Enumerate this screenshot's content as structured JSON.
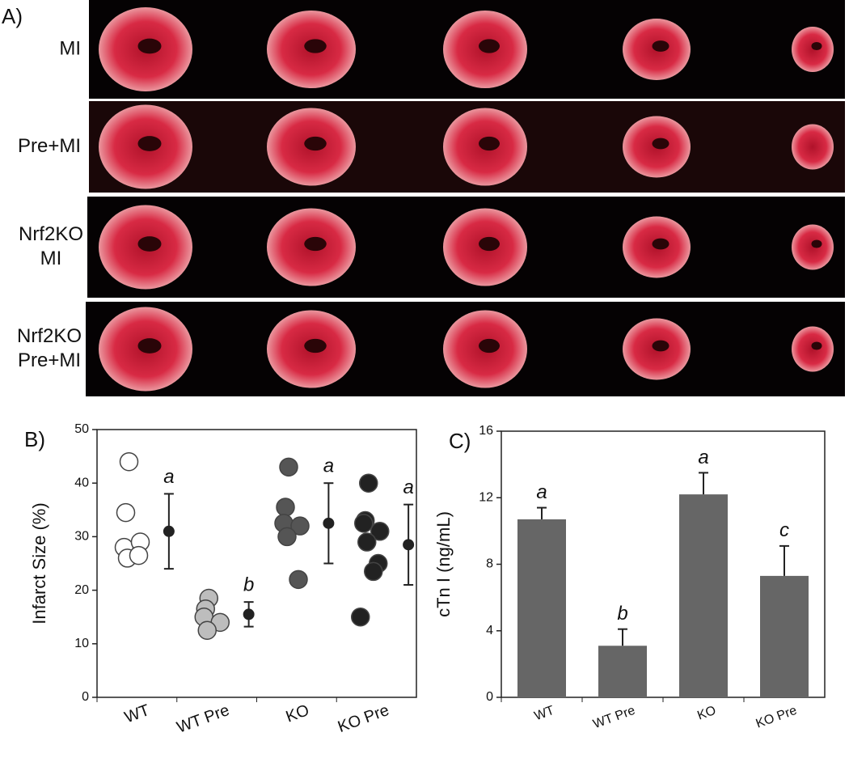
{
  "panel_a": {
    "label": "A)",
    "rows": [
      [
        "MI"
      ],
      [
        "Pre+MI"
      ],
      [
        "Nrf2KO",
        "MI"
      ],
      [
        "Nrf2KO",
        "Pre+MI"
      ]
    ]
  },
  "chart_data": [
    {
      "type": "dot-strip",
      "label": "B)",
      "y_label": "Infarct Size (%)",
      "categories": [
        "WT",
        "WT Pre",
        "KO",
        "KO Pre"
      ],
      "groups": [
        {
          "color": "#ffffff",
          "values": [
            44,
            34.5,
            28,
            29,
            26,
            26.5
          ]
        },
        {
          "color": "#bdbdbd",
          "values": [
            18.5,
            16.5,
            15,
            14,
            12.5
          ]
        },
        {
          "color": "#555555",
          "values": [
            43,
            35.5,
            32.5,
            32,
            30,
            22
          ]
        },
        {
          "color": "#222222",
          "values": [
            40,
            33,
            32.5,
            31,
            29,
            25,
            23.5,
            15
          ]
        }
      ],
      "means": [
        31,
        15.5,
        32.5,
        28.5
      ],
      "errors": [
        7,
        2.3,
        7.5,
        7.5
      ],
      "annotations": [
        "a",
        "b",
        "a",
        "a"
      ],
      "ylim": [
        0,
        50
      ],
      "yticks": [
        0,
        10,
        20,
        30,
        40,
        50
      ]
    },
    {
      "type": "bar",
      "label": "C)",
      "y_label": "cTn I (ng/mL)",
      "categories": [
        "WT",
        "WT Pre",
        "KO",
        "KO Pre"
      ],
      "values": [
        10.7,
        3.1,
        12.2,
        7.3
      ],
      "errors": [
        0.7,
        1.0,
        1.3,
        1.8
      ],
      "annotations": [
        "a",
        "b",
        "a",
        "c"
      ],
      "color": "#666666",
      "ylim": [
        0,
        16
      ],
      "yticks": [
        0,
        4,
        8,
        12,
        16
      ]
    }
  ]
}
